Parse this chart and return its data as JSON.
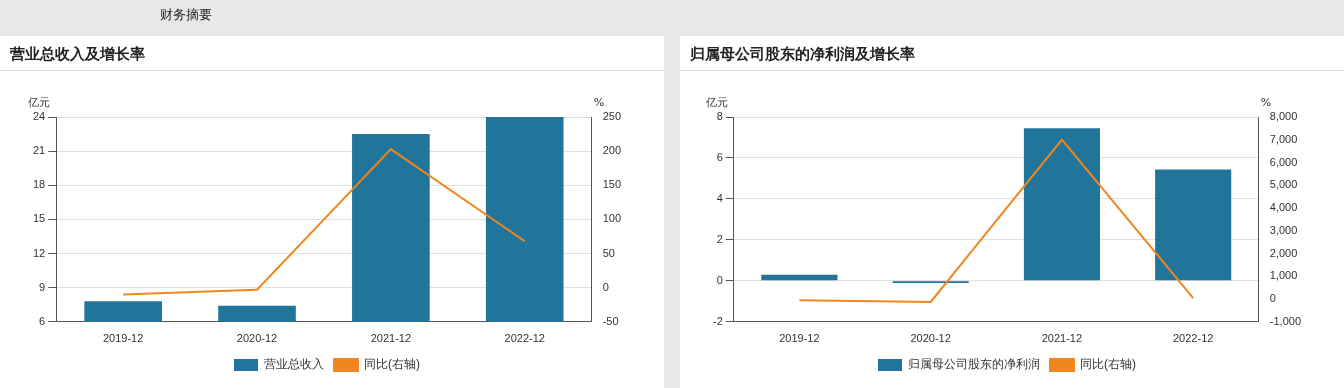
{
  "chart_data": [
    {
      "type": "bar",
      "title": "营业总收入及增长率",
      "annotations": [
        "财务摘要"
      ],
      "ylabel": "亿元",
      "y2label": "%",
      "categories": [
        "2019-12",
        "2020-12",
        "2021-12",
        "2022-12"
      ],
      "series": [
        {
          "name": "营业总收入",
          "color": "#21759b",
          "values": [
            7.8,
            7.4,
            22.5,
            24
          ]
        },
        {
          "name": "同比(右轴)",
          "type": "line",
          "axis": "y2",
          "color": "#f0861e",
          "values": [
            -10,
            -3,
            203,
            68
          ]
        }
      ],
      "ylim": [
        6,
        24
      ],
      "yticks": [
        6,
        9,
        12,
        15,
        18,
        21,
        24
      ],
      "y2lim": [
        -50,
        250
      ],
      "y2ticks": [
        -50,
        0,
        50,
        100,
        150,
        200,
        250
      ],
      "grid": "y",
      "legend": "bottom",
      "marker": "none"
    },
    {
      "type": "bar",
      "title": "归属母公司股东的净利润及增长率",
      "ylabel": "亿元",
      "y2label": "%",
      "categories": [
        "2019-12",
        "2020-12",
        "2021-12",
        "2022-12"
      ],
      "series": [
        {
          "name": "归属母公司股东的净利润",
          "color": "#21759b",
          "values": [
            0.3,
            -0.1,
            7.45,
            5.44
          ]
        },
        {
          "name": "同比(右轴)",
          "type": "line",
          "axis": "y2",
          "color": "#f0861e",
          "values": [
            -50,
            -130,
            7010,
            40
          ]
        }
      ],
      "ylim": [
        -2,
        8
      ],
      "yticks": [
        -2,
        0,
        2,
        4,
        6,
        8
      ],
      "y2lim": [
        -1000,
        8000
      ],
      "y2ticks": [
        {
          "value": -1000,
          "label": "-1,000"
        },
        0,
        {
          "value": 1000,
          "label": "1,000"
        },
        {
          "value": 2000,
          "label": "2,000"
        },
        {
          "value": 3000,
          "label": "3,000"
        },
        {
          "value": 4000,
          "label": "4,000"
        },
        {
          "value": 5000,
          "label": "5,000"
        },
        {
          "value": 6000,
          "label": "6,000"
        },
        {
          "value": 7000,
          "label": "7,000"
        },
        {
          "value": 8000,
          "label": "8,000"
        }
      ],
      "grid": "y",
      "legend": "bottom",
      "marker": "none"
    }
  ]
}
